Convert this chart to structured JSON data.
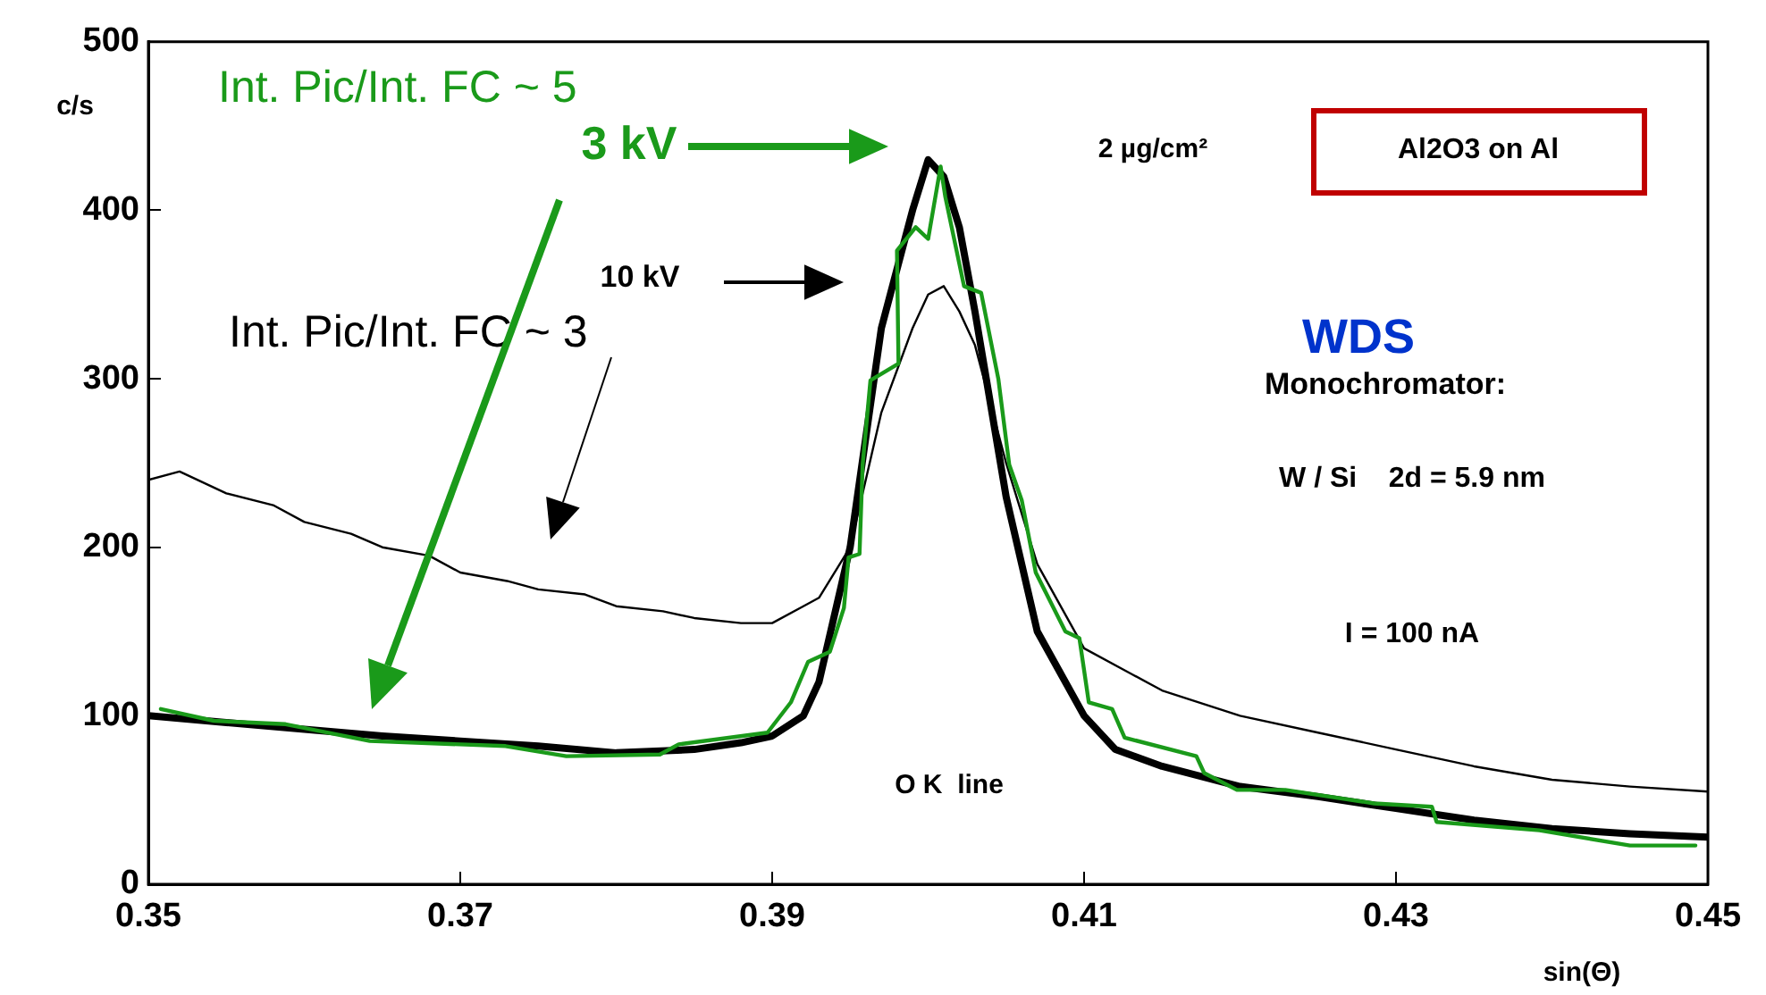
{
  "chart_data": {
    "type": "line",
    "xlabel": "sin(Θ)",
    "ylabel": "c/s",
    "xlim": [
      0.35,
      0.45
    ],
    "xticks": [
      0.35,
      0.37,
      0.39,
      0.41,
      0.43,
      0.45
    ],
    "ylim": [
      0,
      500
    ],
    "yticks": [
      0,
      100,
      200,
      300,
      400,
      500
    ],
    "grid": false,
    "legend": false,
    "marker": "none",
    "line_style": "solid",
    "annotations": [
      "Int. Pic/Int. FC ~ 5",
      "Int. Pic/Int. FC ~ 3",
      "3 kV",
      "10 kV",
      "2 µg/cm²",
      "Al2O3 on Al",
      "WDS",
      "Monochromator:",
      "W / Si    2d = 5.9 nm",
      "I = 100 nA",
      "O K  line"
    ],
    "series": [
      {
        "color": "#000000",
        "x": [
          0.35,
          0.352,
          0.355,
          0.358,
          0.36,
          0.363,
          0.365,
          0.368,
          0.37,
          0.373,
          0.375,
          0.378,
          0.38,
          0.383,
          0.385,
          0.388,
          0.39,
          0.392,
          0.393,
          0.395,
          0.397,
          0.399,
          0.4,
          0.401,
          0.402,
          0.403,
          0.405,
          0.407,
          0.41,
          0.413,
          0.415,
          0.42,
          0.425,
          0.43,
          0.435,
          0.44,
          0.445,
          0.45
        ],
        "values": [
          240,
          245,
          232,
          225,
          215,
          208,
          200,
          195,
          185,
          180,
          175,
          172,
          165,
          162,
          158,
          155,
          155,
          165,
          170,
          200,
          280,
          330,
          350,
          355,
          340,
          320,
          250,
          190,
          140,
          125,
          115,
          100,
          90,
          80,
          70,
          62,
          58,
          55
        ]
      },
      {
        "color": "#000000",
        "x": [
          0.35,
          0.355,
          0.36,
          0.365,
          0.37,
          0.375,
          0.38,
          0.385,
          0.388,
          0.39,
          0.392,
          0.393,
          0.395,
          0.397,
          0.399,
          0.4,
          0.401,
          0.402,
          0.403,
          0.405,
          0.407,
          0.41,
          0.412,
          0.415,
          0.42,
          0.425,
          0.43,
          0.435,
          0.44,
          0.445,
          0.45
        ],
        "values": [
          100,
          96,
          92,
          88,
          85,
          82,
          78,
          80,
          84,
          88,
          100,
          120,
          200,
          330,
          400,
          430,
          420,
          390,
          340,
          230,
          150,
          100,
          80,
          70,
          58,
          52,
          45,
          38,
          33,
          30,
          28
        ]
      },
      {
        "color": "#1a9a1a",
        "x": [
          0.3508,
          0.3542,
          0.3588,
          0.3642,
          0.3729,
          0.3768,
          0.3828,
          0.384,
          0.3897,
          0.3912,
          0.3923,
          0.3937,
          0.3946,
          0.3949,
          0.3956,
          0.3958,
          0.3963,
          0.3981,
          0.398,
          0.3992,
          0.4,
          0.4008,
          0.4011,
          0.4023,
          0.4034,
          0.4045,
          0.4052,
          0.406,
          0.4069,
          0.4088,
          0.4097,
          0.4103,
          0.4118,
          0.4126,
          0.4172,
          0.4177,
          0.4198,
          0.4229,
          0.4286,
          0.4323,
          0.4326,
          0.4392,
          0.445,
          0.4492
        ],
        "values": [
          104,
          97,
          95,
          85,
          82,
          76,
          77,
          83,
          90,
          108,
          132,
          138,
          164,
          194,
          196,
          249,
          299,
          309,
          376,
          390,
          383,
          426,
          408,
          355,
          351,
          300,
          249,
          228,
          185,
          150,
          146,
          108,
          104,
          87,
          76,
          66,
          56,
          56,
          48,
          46,
          37,
          32,
          23,
          23
        ]
      }
    ]
  }
}
